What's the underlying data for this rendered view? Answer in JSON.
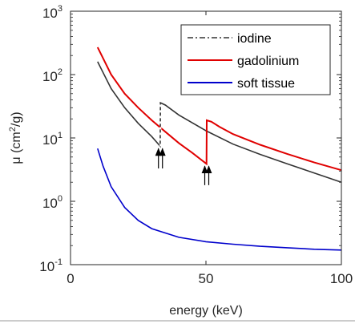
{
  "chart_data": {
    "type": "line",
    "title": "",
    "xlabel": "energy (keV)",
    "ylabel": {
      "prefix": "μ (cm",
      "sup": "2",
      "suffix": "/g)"
    },
    "xlim": [
      0,
      100
    ],
    "ylim": [
      0.1,
      1000
    ],
    "yscale": "log",
    "grid": false,
    "legend_position": "top-right",
    "x_ticks": [
      {
        "value": 0,
        "label": "0"
      },
      {
        "value": 50,
        "label": "50"
      },
      {
        "value": 100,
        "label": "100"
      }
    ],
    "y_ticks": [
      {
        "value": 0.1,
        "base": "10",
        "exp": "-1"
      },
      {
        "value": 1,
        "base": "10",
        "exp": "0"
      },
      {
        "value": 10,
        "base": "10",
        "exp": "1"
      },
      {
        "value": 100,
        "base": "10",
        "exp": "2"
      },
      {
        "value": 1000,
        "base": "10",
        "exp": "3"
      }
    ],
    "series": [
      {
        "name": "iodine",
        "color": "#333333",
        "points": [
          [
            10,
            160
          ],
          [
            15,
            60
          ],
          [
            20,
            30
          ],
          [
            25,
            17
          ],
          [
            30,
            10.5
          ],
          [
            33.1,
            7.4
          ],
          [
            33.2,
            36
          ],
          [
            35,
            33
          ],
          [
            40,
            23
          ],
          [
            50,
            13
          ],
          [
            60,
            8
          ],
          [
            70,
            5.5
          ],
          [
            80,
            3.9
          ],
          [
            90,
            2.8
          ],
          [
            100,
            2.0
          ]
        ]
      },
      {
        "name": "gadolinium",
        "color": "#e00000",
        "points": [
          [
            10,
            270
          ],
          [
            15,
            100
          ],
          [
            20,
            50
          ],
          [
            25,
            30
          ],
          [
            30,
            19
          ],
          [
            35,
            12.5
          ],
          [
            40,
            8.3
          ],
          [
            45,
            5.8
          ],
          [
            50.2,
            3.9
          ],
          [
            50.3,
            19
          ],
          [
            52,
            18
          ],
          [
            55,
            15
          ],
          [
            60,
            11.5
          ],
          [
            70,
            7.8
          ],
          [
            80,
            5.6
          ],
          [
            90,
            4.1
          ],
          [
            100,
            3.1
          ]
        ]
      },
      {
        "name": "soft tissue",
        "color": "#0000cc",
        "points": [
          [
            10,
            6.8
          ],
          [
            12,
            3.6
          ],
          [
            15,
            1.7
          ],
          [
            20,
            0.8
          ],
          [
            25,
            0.5
          ],
          [
            30,
            0.37
          ],
          [
            40,
            0.27
          ],
          [
            50,
            0.23
          ],
          [
            60,
            0.21
          ],
          [
            70,
            0.195
          ],
          [
            80,
            0.185
          ],
          [
            90,
            0.175
          ],
          [
            100,
            0.17
          ]
        ]
      }
    ],
    "annotations": [
      {
        "type": "double-arrow",
        "x": 33.2,
        "from_y": 3.3,
        "to_y": 7.2
      },
      {
        "type": "double-arrow",
        "x": 50.3,
        "from_y": 1.8,
        "to_y": 3.8
      }
    ]
  }
}
